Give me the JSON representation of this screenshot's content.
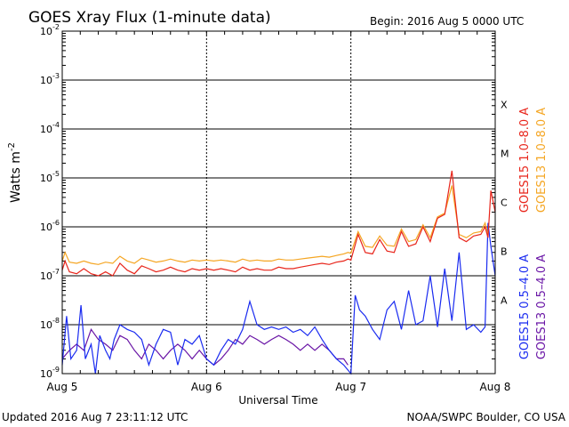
{
  "chart_data": {
    "type": "line",
    "title": "GOES Xray Flux (1-minute data)",
    "begin": "Begin:  2016 Aug 5 0000 UTC",
    "xlabel": "Universal Time",
    "ylabel": "Watts m",
    "ylabel_exp": "-2",
    "y_scale": "log",
    "ylim": [
      1e-09,
      0.01
    ],
    "xlim_days": [
      0,
      3
    ],
    "x_ticks": [
      {
        "day": 0,
        "label": "Aug 5"
      },
      {
        "day": 1,
        "label": "Aug 6"
      },
      {
        "day": 2,
        "label": "Aug 7"
      },
      {
        "day": 3,
        "label": "Aug 8"
      }
    ],
    "y_ticks": [
      {
        "exp": -9,
        "label": "10",
        "sup": "-9"
      },
      {
        "exp": -8,
        "label": "10",
        "sup": "-8"
      },
      {
        "exp": -7,
        "label": "10",
        "sup": "-7"
      },
      {
        "exp": -6,
        "label": "10",
        "sup": "-6"
      },
      {
        "exp": -5,
        "label": "10",
        "sup": "-5"
      },
      {
        "exp": -4,
        "label": "10",
        "sup": "-4"
      },
      {
        "exp": -3,
        "label": "10",
        "sup": "-3"
      },
      {
        "exp": -2,
        "label": "10",
        "sup": "-2"
      }
    ],
    "flare_classes": [
      {
        "label": "A",
        "exp": -7.5
      },
      {
        "label": "B",
        "exp": -6.5
      },
      {
        "label": "C",
        "exp": -5.5
      },
      {
        "label": "M",
        "exp": -4.5
      },
      {
        "label": "X",
        "exp": -3.5
      }
    ],
    "grid": true,
    "legend_position": "right, vertical",
    "series": [
      {
        "name": "GOES15 1.0–8.0 A",
        "color": "#e8251b",
        "x": [
          0,
          0.02,
          0.05,
          0.1,
          0.15,
          0.2,
          0.25,
          0.3,
          0.35,
          0.4,
          0.45,
          0.5,
          0.55,
          0.6,
          0.65,
          0.7,
          0.75,
          0.8,
          0.85,
          0.9,
          0.95,
          1.0,
          1.05,
          1.1,
          1.15,
          1.2,
          1.25,
          1.3,
          1.35,
          1.4,
          1.45,
          1.5,
          1.55,
          1.6,
          1.65,
          1.7,
          1.75,
          1.8,
          1.85,
          1.9,
          1.95,
          1.98,
          2.0,
          2.05,
          2.1,
          2.15,
          2.2,
          2.25,
          2.3,
          2.35,
          2.4,
          2.45,
          2.5,
          2.55,
          2.6,
          2.65,
          2.7,
          2.75,
          2.8,
          2.85,
          2.9,
          2.93,
          2.95,
          2.97,
          3.0
        ],
        "y": [
          1.3e-07,
          2e-07,
          1.2e-07,
          1.1e-07,
          1.4e-07,
          1.1e-07,
          1e-07,
          1.2e-07,
          1e-07,
          1.8e-07,
          1.3e-07,
          1.1e-07,
          1.6e-07,
          1.4e-07,
          1.2e-07,
          1.3e-07,
          1.5e-07,
          1.3e-07,
          1.2e-07,
          1.4e-07,
          1.3e-07,
          1.4e-07,
          1.3e-07,
          1.4e-07,
          1.3e-07,
          1.2e-07,
          1.5e-07,
          1.3e-07,
          1.4e-07,
          1.3e-07,
          1.3e-07,
          1.5e-07,
          1.4e-07,
          1.4e-07,
          1.5e-07,
          1.6e-07,
          1.7e-07,
          1.8e-07,
          1.7e-07,
          1.9e-07,
          2e-07,
          2.2e-07,
          2.1e-07,
          7e-07,
          3e-07,
          2.8e-07,
          5.5e-07,
          3.2e-07,
          3e-07,
          8e-07,
          4e-07,
          4.5e-07,
          1e-06,
          5e-07,
          1.5e-06,
          1.8e-06,
          1.4e-05,
          6e-07,
          5e-07,
          6.5e-07,
          7e-07,
          1e-06,
          6e-07,
          5.5e-06,
          2e-06
        ]
      },
      {
        "name": "GOES13 1.0–8.0 A",
        "color": "#f5a623",
        "x": [
          0,
          0.02,
          0.05,
          0.1,
          0.15,
          0.2,
          0.25,
          0.3,
          0.35,
          0.4,
          0.45,
          0.5,
          0.55,
          0.6,
          0.65,
          0.7,
          0.75,
          0.8,
          0.85,
          0.9,
          0.95,
          1.0,
          1.05,
          1.1,
          1.15,
          1.2,
          1.25,
          1.3,
          1.35,
          1.4,
          1.45,
          1.5,
          1.55,
          1.6,
          1.65,
          1.7,
          1.75,
          1.8,
          1.85,
          1.9,
          1.95,
          1.98,
          2.0,
          2.05,
          2.1,
          2.15,
          2.2,
          2.25,
          2.3,
          2.35,
          2.4,
          2.45,
          2.5,
          2.55,
          2.6,
          2.65,
          2.7,
          2.75,
          2.8,
          2.85,
          2.9,
          2.93,
          2.95
        ],
        "y": [
          2e-07,
          3e-07,
          1.9e-07,
          1.8e-07,
          2e-07,
          1.8e-07,
          1.7e-07,
          1.9e-07,
          1.8e-07,
          2.5e-07,
          2e-07,
          1.8e-07,
          2.3e-07,
          2.1e-07,
          1.9e-07,
          2e-07,
          2.2e-07,
          2e-07,
          1.9e-07,
          2.1e-07,
          2e-07,
          2.1e-07,
          2e-07,
          2.1e-07,
          2e-07,
          1.9e-07,
          2.2e-07,
          2e-07,
          2.1e-07,
          2e-07,
          2e-07,
          2.2e-07,
          2.1e-07,
          2.1e-07,
          2.2e-07,
          2.3e-07,
          2.4e-07,
          2.5e-07,
          2.4e-07,
          2.6e-07,
          2.8e-07,
          3e-07,
          2.9e-07,
          8e-07,
          4e-07,
          3.8e-07,
          6.5e-07,
          4.2e-07,
          4e-07,
          9e-07,
          5e-07,
          5.5e-07,
          1.1e-06,
          6e-07,
          1.6e-06,
          1.9e-06,
          7e-06,
          7e-07,
          6e-07,
          7.5e-07,
          8e-07,
          1.2e-06,
          7e-07
        ]
      },
      {
        "name": "GOES15 0.5–4.0 A",
        "color": "#1a2bf0",
        "x": [
          0,
          0.03,
          0.06,
          0.1,
          0.13,
          0.16,
          0.2,
          0.23,
          0.26,
          0.3,
          0.33,
          0.36,
          0.4,
          0.45,
          0.5,
          0.55,
          0.6,
          0.65,
          0.7,
          0.75,
          0.8,
          0.85,
          0.9,
          0.95,
          1.0,
          1.05,
          1.1,
          1.15,
          1.2,
          1.25,
          1.3,
          1.35,
          1.4,
          1.45,
          1.5,
          1.55,
          1.6,
          1.65,
          1.7,
          1.75,
          1.8,
          1.85,
          1.9,
          1.95,
          2.0,
          2.03,
          2.06,
          2.1,
          2.15,
          2.2,
          2.25,
          2.3,
          2.35,
          2.4,
          2.45,
          2.5,
          2.55,
          2.6,
          2.65,
          2.7,
          2.75,
          2.8,
          2.85,
          2.9,
          2.93,
          2.95,
          2.97,
          3.0
        ],
        "y": [
          1.5e-09,
          1.5e-08,
          2e-09,
          3e-09,
          2.5e-08,
          2e-09,
          4e-09,
          1e-09,
          6e-09,
          3e-09,
          2e-09,
          5e-09,
          1e-08,
          8e-09,
          7e-09,
          5e-09,
          1.5e-09,
          4e-09,
          8e-09,
          7e-09,
          1.5e-09,
          5e-09,
          4e-09,
          6e-09,
          2e-09,
          1.5e-09,
          3e-09,
          5e-09,
          4e-09,
          8e-09,
          3e-08,
          1e-08,
          8e-09,
          9e-09,
          8e-09,
          9e-09,
          7e-09,
          8e-09,
          6e-09,
          9e-09,
          5e-09,
          3e-09,
          2e-09,
          1.5e-09,
          1e-09,
          4e-08,
          2e-08,
          1.5e-08,
          8e-09,
          5e-09,
          2e-08,
          3e-08,
          8e-09,
          5e-08,
          1e-08,
          1.2e-08,
          1e-07,
          9e-09,
          1.4e-07,
          1.2e-08,
          3e-07,
          8e-09,
          1e-08,
          7e-09,
          9e-09,
          1.2e-06,
          4e-07,
          1e-07
        ]
      },
      {
        "name": "GOES13 0.5–4.0 A",
        "color": "#6a16a6",
        "x": [
          0,
          0.05,
          0.1,
          0.15,
          0.2,
          0.25,
          0.3,
          0.35,
          0.4,
          0.45,
          0.5,
          0.55,
          0.6,
          0.65,
          0.7,
          0.75,
          0.8,
          0.85,
          0.9,
          0.95,
          1.0,
          1.05,
          1.1,
          1.15,
          1.2,
          1.25,
          1.3,
          1.35,
          1.4,
          1.45,
          1.5,
          1.55,
          1.6,
          1.65,
          1.7,
          1.75,
          1.8,
          1.85,
          1.9,
          1.95,
          1.98
        ],
        "y": [
          2e-09,
          3e-09,
          4e-09,
          3e-09,
          8e-09,
          5e-09,
          4e-09,
          3e-09,
          6e-09,
          5e-09,
          3e-09,
          2e-09,
          4e-09,
          3e-09,
          2e-09,
          3e-09,
          4e-09,
          3e-09,
          2e-09,
          3e-09,
          2e-09,
          1.5e-09,
          2e-09,
          3e-09,
          5e-09,
          4e-09,
          6e-09,
          5e-09,
          4e-09,
          5e-09,
          6e-09,
          5e-09,
          4e-09,
          3e-09,
          4e-09,
          3e-09,
          4e-09,
          3e-09,
          2e-09,
          2e-09,
          1.5e-09
        ]
      }
    ]
  },
  "footer": {
    "updated": "Updated 2016 Aug  7 23:11:12 UTC",
    "credit": "NOAA/SWPC Boulder, CO USA"
  }
}
